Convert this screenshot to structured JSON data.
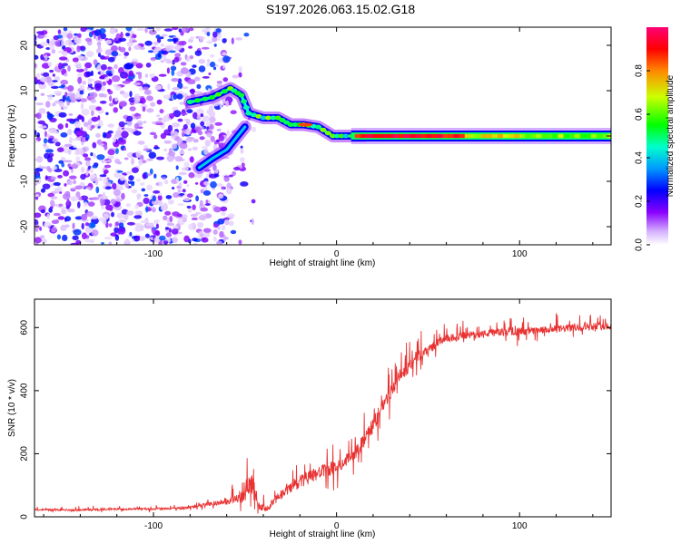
{
  "title": "S197.2026.063.15.02.G18",
  "colors": {
    "snr_line": "#e83333",
    "axis": "#000000"
  },
  "chart_data": [
    {
      "type": "heatmap",
      "title": "S197.2026.063.15.02.G18",
      "xlabel": "Height of straight line (km)",
      "ylabel": "Frequency (Hz)",
      "xlim": [
        -165,
        150
      ],
      "ylim": [
        -24,
        24
      ],
      "x_ticks": [
        -100,
        0,
        100
      ],
      "y_ticks": [
        -20,
        -10,
        0,
        10,
        20
      ],
      "colorbar": {
        "label": "Normalized spectral amplitude",
        "range": [
          0,
          1
        ],
        "ticks": [
          "0.0",
          "0.2",
          "0.4",
          "0.6",
          "0.8"
        ]
      },
      "features": [
        {
          "name": "noise",
          "x_range": [
            -165,
            -45
          ],
          "freq_range": [
            -24,
            24
          ],
          "amplitude": 0.15
        },
        {
          "name": "ridge",
          "points": [
            [
              -80,
              7.5
            ],
            [
              -68,
              8.5
            ],
            [
              -58,
              10.5
            ],
            [
              -52,
              9
            ],
            [
              -48,
              5
            ],
            [
              -40,
              4
            ],
            [
              -32,
              4
            ],
            [
              -25,
              2.5
            ],
            [
              -18,
              2.5
            ],
            [
              -10,
              2
            ],
            [
              -2,
              0
            ],
            [
              5,
              0
            ],
            [
              15,
              0
            ],
            [
              150,
              0
            ]
          ]
        },
        {
          "name": "lower-branch",
          "points": [
            [
              -75,
              -7
            ],
            [
              -68,
              -5
            ],
            [
              -60,
              -3
            ],
            [
              -56,
              -1
            ],
            [
              -50,
              2
            ]
          ]
        }
      ]
    },
    {
      "type": "line",
      "xlabel": "Height of straight line (km)",
      "ylabel": "SNR (10 * v/v)",
      "xlim": [
        -165,
        150
      ],
      "ylim": [
        0,
        690
      ],
      "x_ticks": [
        -100,
        0,
        100
      ],
      "y_ticks": [
        0,
        200,
        400,
        600
      ],
      "series": [
        {
          "name": "SNR",
          "x": [
            -165,
            -140,
            -120,
            -100,
            -85,
            -75,
            -65,
            -55,
            -50,
            -47,
            -45,
            -42,
            -38,
            -35,
            -30,
            -25,
            -20,
            -15,
            -10,
            -5,
            0,
            5,
            10,
            15,
            20,
            25,
            30,
            35,
            40,
            45,
            50,
            55,
            60,
            70,
            80,
            90,
            100,
            110,
            120,
            130,
            140,
            150
          ],
          "values": [
            22,
            22,
            24,
            25,
            27,
            35,
            45,
            55,
            70,
            110,
            90,
            30,
            25,
            45,
            70,
            95,
            110,
            125,
            140,
            150,
            160,
            180,
            200,
            240,
            290,
            350,
            400,
            450,
            480,
            510,
            530,
            550,
            565,
            575,
            580,
            585,
            588,
            590,
            595,
            600,
            605,
            605
          ],
          "noise": [
            5,
            5,
            5,
            5,
            6,
            8,
            12,
            25,
            40,
            60,
            40,
            20,
            15,
            25,
            30,
            35,
            35,
            35,
            35,
            35,
            35,
            35,
            35,
            40,
            40,
            40,
            40,
            35,
            35,
            30,
            25,
            25,
            20,
            20,
            20,
            20,
            20,
            20,
            20,
            20,
            20,
            20
          ]
        }
      ]
    }
  ]
}
